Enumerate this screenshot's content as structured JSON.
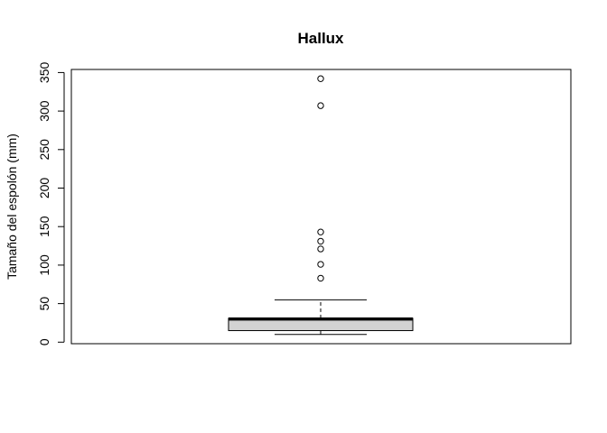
{
  "chart_data": {
    "type": "boxplot",
    "title": "Hallux",
    "xlabel": "",
    "ylabel": "Tamaño del espolón (mm)",
    "ylim": [
      -2,
      354
    ],
    "y_ticks": [
      "0",
      "50",
      "100",
      "150",
      "200",
      "250",
      "300",
      "350"
    ],
    "grid": false,
    "legend": "none",
    "box_fill": "#d3d3d3",
    "stroke": "#000000",
    "box": {
      "min": 10,
      "q1": 15,
      "median": 30,
      "q3": 31,
      "max": 55
    },
    "outliers": [
      83,
      101,
      121,
      131,
      143,
      307,
      342
    ]
  }
}
